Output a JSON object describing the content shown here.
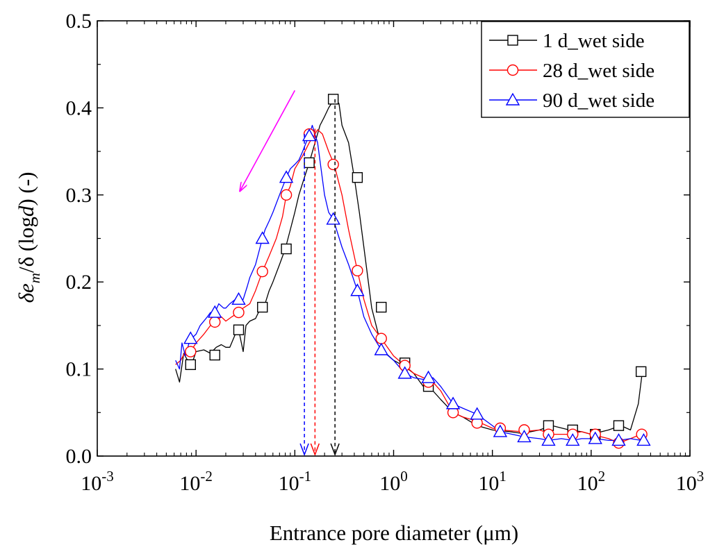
{
  "chart_data": {
    "type": "line",
    "xlabel": "Entrance pore diameter (μm)",
    "ylabel": {
      "delta1": "δ",
      "e": "e",
      "m": "m",
      "delta2": "/δ (log",
      "d": "d",
      "end": ") (-)"
    },
    "xscale": "log",
    "xlim": [
      0.001,
      1000
    ],
    "ylim": [
      0.0,
      0.5
    ],
    "xticks": [
      {
        "base": "10",
        "exp": "-3"
      },
      {
        "base": "10",
        "exp": "-2"
      },
      {
        "base": "10",
        "exp": "-1"
      },
      {
        "base": "10",
        "exp": "0"
      },
      {
        "base": "10",
        "exp": "1"
      },
      {
        "base": "10",
        "exp": "2"
      },
      {
        "base": "10",
        "exp": "3"
      }
    ],
    "yticks": [
      "0.0",
      "0.1",
      "0.2",
      "0.3",
      "0.4",
      "0.5"
    ],
    "legend_position": "top-right",
    "series": [
      {
        "name": "1 d_wet side",
        "color": "#000000",
        "marker": "square",
        "x": [
          0.0062,
          0.0068,
          0.0075,
          0.0082,
          0.009,
          0.01,
          0.012,
          0.014,
          0.016,
          0.018,
          0.02,
          0.022,
          0.025,
          0.027,
          0.03,
          0.032,
          0.035,
          0.04,
          0.045,
          0.05,
          0.055,
          0.06,
          0.07,
          0.08,
          0.09,
          0.1,
          0.11,
          0.125,
          0.14,
          0.16,
          0.18,
          0.2,
          0.22,
          0.25,
          0.28,
          0.3,
          0.35,
          0.4,
          0.45,
          0.5,
          0.6,
          0.7,
          0.8,
          1.0,
          1.2,
          1.4,
          1.6,
          2.0,
          2.5,
          3.0,
          4.0,
          5.0,
          7.0,
          10.0,
          15.0,
          20.0,
          30.0,
          40.0,
          60.0,
          80.0,
          100.0,
          150.0,
          200.0,
          250.0,
          300.0,
          330.0
        ],
        "values": [
          0.1,
          0.085,
          0.118,
          0.11,
          0.105,
          0.12,
          0.122,
          0.118,
          0.125,
          0.128,
          0.125,
          0.125,
          0.14,
          0.145,
          0.12,
          0.15,
          0.155,
          0.158,
          0.17,
          0.175,
          0.19,
          0.2,
          0.22,
          0.238,
          0.26,
          0.28,
          0.3,
          0.32,
          0.337,
          0.36,
          0.38,
          0.39,
          0.4,
          0.41,
          0.405,
          0.38,
          0.36,
          0.32,
          0.28,
          0.24,
          0.17,
          0.14,
          0.12,
          0.11,
          0.105,
          0.1,
          0.095,
          0.08,
          0.075,
          0.065,
          0.05,
          0.045,
          0.035,
          0.03,
          0.028,
          0.026,
          0.03,
          0.035,
          0.03,
          0.028,
          0.025,
          0.03,
          0.035,
          0.03,
          0.06,
          0.097
        ],
        "marker_x": [
          0.0088,
          0.0155,
          0.027,
          0.047,
          0.082,
          0.14,
          0.245,
          0.43,
          0.75,
          1.3,
          2.25,
          37.0,
          65.0,
          110.0,
          190.0,
          320.0
        ],
        "marker_y": [
          0.105,
          0.116,
          0.145,
          0.171,
          0.238,
          0.337,
          0.41,
          0.32,
          0.171,
          0.107,
          0.08,
          0.035,
          0.03,
          0.025,
          0.035,
          0.097
        ]
      },
      {
        "name": "28 d_wet side",
        "color": "#ff0000",
        "marker": "circle",
        "x": [
          0.0062,
          0.007,
          0.0078,
          0.0088,
          0.01,
          0.012,
          0.014,
          0.0155,
          0.018,
          0.02,
          0.023,
          0.027,
          0.03,
          0.035,
          0.04,
          0.047,
          0.055,
          0.065,
          0.075,
          0.082,
          0.09,
          0.1,
          0.12,
          0.14,
          0.16,
          0.17,
          0.19,
          0.22,
          0.25,
          0.3,
          0.35,
          0.43,
          0.5,
          0.6,
          0.75,
          1.0,
          1.3,
          1.6,
          2.0,
          2.5,
          3.0,
          4.0,
          5.0,
          7.0,
          10.0,
          12.0,
          20.0,
          30.0,
          40.0,
          60.0,
          80.0,
          100.0,
          150.0,
          190.0,
          250.0,
          320.0,
          340.0
        ],
        "values": [
          0.105,
          0.11,
          0.12,
          0.12,
          0.13,
          0.14,
          0.15,
          0.154,
          0.16,
          0.155,
          0.16,
          0.165,
          0.17,
          0.175,
          0.19,
          0.212,
          0.23,
          0.25,
          0.275,
          0.3,
          0.31,
          0.33,
          0.345,
          0.36,
          0.37,
          0.375,
          0.37,
          0.35,
          0.335,
          0.3,
          0.26,
          0.213,
          0.18,
          0.15,
          0.135,
          0.115,
          0.104,
          0.095,
          0.09,
          0.085,
          0.075,
          0.05,
          0.045,
          0.04,
          0.032,
          0.03,
          0.028,
          0.03,
          0.025,
          0.025,
          0.028,
          0.025,
          0.02,
          0.015,
          0.02,
          0.025,
          0.025
        ],
        "marker_x": [
          0.0088,
          0.0155,
          0.027,
          0.047,
          0.082,
          0.14,
          0.245,
          0.43,
          0.75,
          1.3,
          2.25,
          4.0,
          7.0,
          12.0,
          21.0,
          37.0,
          65.0,
          110.0,
          190.0,
          325.0
        ],
        "marker_y": [
          0.12,
          0.154,
          0.165,
          0.212,
          0.3,
          0.37,
          0.335,
          0.213,
          0.135,
          0.104,
          0.085,
          0.05,
          0.038,
          0.032,
          0.03,
          0.025,
          0.025,
          0.025,
          0.015,
          0.025
        ]
      },
      {
        "name": "90 d_wet side",
        "color": "#0000ff",
        "marker": "triangle",
        "x": [
          0.0062,
          0.0068,
          0.0072,
          0.0078,
          0.0085,
          0.009,
          0.01,
          0.011,
          0.012,
          0.013,
          0.014,
          0.0155,
          0.017,
          0.019,
          0.02,
          0.022,
          0.025,
          0.027,
          0.03,
          0.033,
          0.035,
          0.04,
          0.047,
          0.05,
          0.055,
          0.06,
          0.07,
          0.082,
          0.09,
          0.1,
          0.11,
          0.12,
          0.13,
          0.14,
          0.15,
          0.17,
          0.2,
          0.22,
          0.245,
          0.3,
          0.35,
          0.43,
          0.5,
          0.6,
          0.75,
          1.0,
          1.3,
          1.6,
          2.0,
          2.5,
          3.0,
          4.0,
          5.0,
          7.0,
          10.0,
          12.0,
          21.0,
          30.0,
          37.0,
          50.0,
          65.0,
          80.0,
          110.0,
          150.0,
          190.0,
          250.0,
          320.0,
          350.0
        ],
        "values": [
          0.11,
          0.1,
          0.13,
          0.115,
          0.13,
          0.135,
          0.14,
          0.15,
          0.155,
          0.16,
          0.165,
          0.165,
          0.175,
          0.17,
          0.17,
          0.175,
          0.18,
          0.175,
          0.18,
          0.195,
          0.205,
          0.22,
          0.25,
          0.26,
          0.27,
          0.28,
          0.3,
          0.32,
          0.33,
          0.335,
          0.34,
          0.35,
          0.36,
          0.368,
          0.38,
          0.36,
          0.3,
          0.28,
          0.272,
          0.24,
          0.22,
          0.19,
          0.16,
          0.14,
          0.122,
          0.11,
          0.095,
          0.09,
          0.088,
          0.09,
          0.08,
          0.06,
          0.055,
          0.048,
          0.035,
          0.028,
          0.022,
          0.02,
          0.018,
          0.02,
          0.018,
          0.02,
          0.02,
          0.018,
          0.018,
          0.02,
          0.018,
          0.018
        ],
        "marker_x": [
          0.0088,
          0.0155,
          0.027,
          0.047,
          0.082,
          0.14,
          0.245,
          0.43,
          0.75,
          1.3,
          2.25,
          4.0,
          7.0,
          12.0,
          21.0,
          37.0,
          65.0,
          110.0,
          190.0,
          340.0
        ],
        "marker_y": [
          0.135,
          0.165,
          0.18,
          0.25,
          0.32,
          0.368,
          0.272,
          0.19,
          0.122,
          0.095,
          0.09,
          0.06,
          0.048,
          0.028,
          0.022,
          0.018,
          0.018,
          0.02,
          0.018,
          0.018
        ]
      }
    ],
    "annotations": {
      "dashed_arrows": [
        {
          "x": 0.125,
          "y_top": 0.37,
          "color": "#0000ff"
        },
        {
          "x": 0.16,
          "y_top": 0.376,
          "color": "#ff0000"
        },
        {
          "x": 0.255,
          "y_top": 0.41,
          "color": "#000000"
        }
      ],
      "trend_arrow": {
        "color": "#ff00ff",
        "x_from": 0.1,
        "y_from": 0.42,
        "x_to": 0.028,
        "y_to": 0.305
      }
    }
  }
}
